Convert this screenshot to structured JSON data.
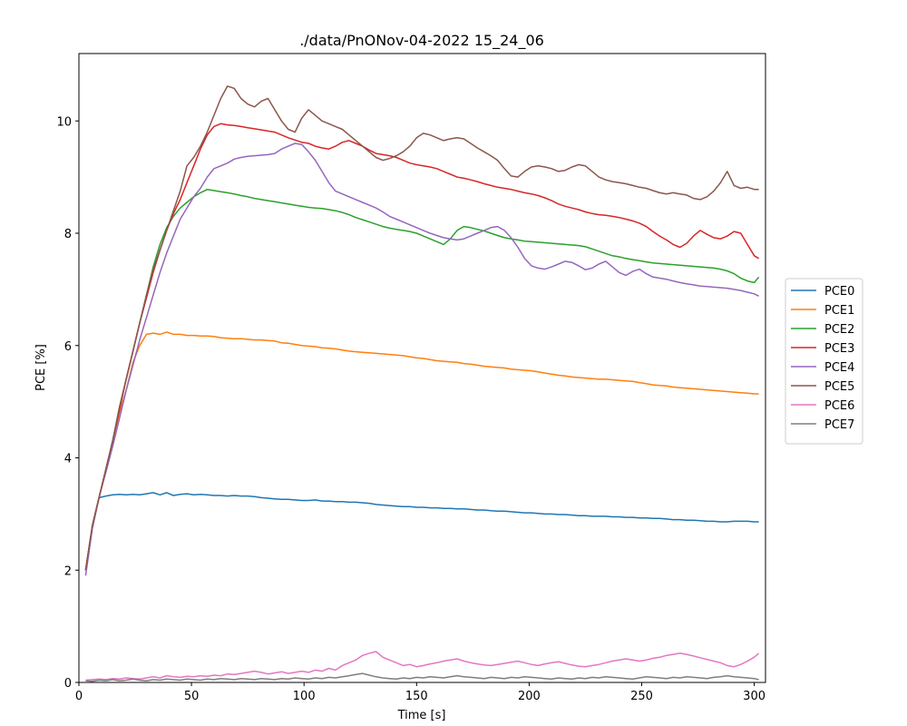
{
  "chart_data": {
    "type": "line",
    "title": "./data/PnONov-04-2022 15_24_06",
    "xlabel": "Time [s]",
    "ylabel": "PCE [%]",
    "xlim": [
      0,
      305
    ],
    "ylim": [
      0,
      11.2
    ],
    "x_ticks": [
      0,
      50,
      100,
      150,
      200,
      250,
      300
    ],
    "y_ticks": [
      0,
      2,
      4,
      6,
      8,
      10
    ],
    "legend_position": "center-right (outside axes)",
    "grid": false,
    "x": [
      3,
      6,
      9,
      12,
      15,
      18,
      21,
      24,
      27,
      30,
      33,
      36,
      39,
      42,
      45,
      48,
      51,
      54,
      57,
      60,
      63,
      66,
      69,
      72,
      75,
      78,
      81,
      84,
      87,
      90,
      93,
      96,
      99,
      102,
      105,
      108,
      111,
      114,
      117,
      120,
      123,
      126,
      129,
      132,
      135,
      138,
      141,
      144,
      147,
      150,
      153,
      156,
      159,
      162,
      165,
      168,
      171,
      174,
      177,
      180,
      183,
      186,
      189,
      192,
      195,
      198,
      201,
      204,
      207,
      210,
      213,
      216,
      219,
      222,
      225,
      228,
      231,
      234,
      237,
      240,
      243,
      246,
      249,
      252,
      255,
      258,
      261,
      264,
      267,
      270,
      273,
      276,
      279,
      282,
      285,
      288,
      291,
      294,
      297,
      300,
      302
    ],
    "series": [
      {
        "name": "PCE0",
        "color": "#1f77b4",
        "values": [
          2.0,
          2.8,
          3.29,
          3.32,
          3.34,
          3.35,
          3.34,
          3.35,
          3.34,
          3.36,
          3.38,
          3.34,
          3.38,
          3.33,
          3.35,
          3.36,
          3.34,
          3.35,
          3.34,
          3.33,
          3.33,
          3.32,
          3.33,
          3.32,
          3.32,
          3.31,
          3.29,
          3.28,
          3.27,
          3.26,
          3.26,
          3.25,
          3.24,
          3.24,
          3.25,
          3.23,
          3.23,
          3.22,
          3.22,
          3.21,
          3.21,
          3.2,
          3.19,
          3.17,
          3.16,
          3.15,
          3.14,
          3.13,
          3.13,
          3.12,
          3.12,
          3.11,
          3.11,
          3.1,
          3.1,
          3.09,
          3.09,
          3.08,
          3.07,
          3.07,
          3.06,
          3.05,
          3.05,
          3.04,
          3.03,
          3.02,
          3.02,
          3.01,
          3.0,
          3.0,
          2.99,
          2.99,
          2.98,
          2.97,
          2.97,
          2.96,
          2.96,
          2.96,
          2.95,
          2.95,
          2.94,
          2.94,
          2.93,
          2.93,
          2.92,
          2.92,
          2.91,
          2.9,
          2.9,
          2.89,
          2.89,
          2.88,
          2.87,
          2.87,
          2.86,
          2.86,
          2.87,
          2.87,
          2.87,
          2.86,
          2.86
        ]
      },
      {
        "name": "PCE1",
        "color": "#ff7f0e",
        "values": [
          2.0,
          2.75,
          3.3,
          3.8,
          4.3,
          4.8,
          5.2,
          5.7,
          6.0,
          6.2,
          6.22,
          6.2,
          6.24,
          6.2,
          6.2,
          6.18,
          6.18,
          6.17,
          6.17,
          6.16,
          6.14,
          6.13,
          6.12,
          6.12,
          6.11,
          6.1,
          6.1,
          6.09,
          6.08,
          6.05,
          6.04,
          6.02,
          6.0,
          5.99,
          5.98,
          5.96,
          5.95,
          5.94,
          5.92,
          5.9,
          5.89,
          5.88,
          5.87,
          5.86,
          5.85,
          5.84,
          5.83,
          5.82,
          5.8,
          5.78,
          5.77,
          5.75,
          5.73,
          5.72,
          5.71,
          5.7,
          5.68,
          5.67,
          5.65,
          5.63,
          5.62,
          5.61,
          5.6,
          5.58,
          5.57,
          5.56,
          5.55,
          5.53,
          5.51,
          5.49,
          5.47,
          5.46,
          5.44,
          5.43,
          5.42,
          5.41,
          5.4,
          5.4,
          5.39,
          5.38,
          5.37,
          5.36,
          5.34,
          5.32,
          5.3,
          5.29,
          5.28,
          5.26,
          5.25,
          5.24,
          5.23,
          5.22,
          5.21,
          5.2,
          5.19,
          5.18,
          5.17,
          5.16,
          5.15,
          5.14,
          5.14
        ]
      },
      {
        "name": "PCE2",
        "color": "#2ca02c",
        "values": [
          2.0,
          2.8,
          3.3,
          3.8,
          4.3,
          4.9,
          5.4,
          5.9,
          6.4,
          6.9,
          7.4,
          7.8,
          8.1,
          8.3,
          8.45,
          8.55,
          8.65,
          8.72,
          8.78,
          8.76,
          8.74,
          8.72,
          8.7,
          8.67,
          8.65,
          8.62,
          8.6,
          8.58,
          8.56,
          8.54,
          8.52,
          8.5,
          8.48,
          8.46,
          8.45,
          8.44,
          8.42,
          8.4,
          8.37,
          8.33,
          8.28,
          8.24,
          8.2,
          8.16,
          8.12,
          8.09,
          8.07,
          8.05,
          8.03,
          8.0,
          7.95,
          7.9,
          7.85,
          7.8,
          7.9,
          8.05,
          8.12,
          8.1,
          8.07,
          8.04,
          8.0,
          7.96,
          7.92,
          7.9,
          7.88,
          7.86,
          7.85,
          7.84,
          7.83,
          7.82,
          7.81,
          7.8,
          7.79,
          7.78,
          7.76,
          7.72,
          7.68,
          7.64,
          7.6,
          7.58,
          7.55,
          7.53,
          7.51,
          7.49,
          7.47,
          7.46,
          7.45,
          7.44,
          7.43,
          7.42,
          7.41,
          7.4,
          7.39,
          7.38,
          7.36,
          7.33,
          7.28,
          7.2,
          7.15,
          7.12,
          7.22
        ]
      },
      {
        "name": "PCE3",
        "color": "#d62728",
        "values": [
          2.0,
          2.8,
          3.3,
          3.8,
          4.3,
          4.85,
          5.4,
          5.9,
          6.4,
          6.85,
          7.3,
          7.7,
          8.05,
          8.35,
          8.6,
          8.9,
          9.2,
          9.5,
          9.75,
          9.9,
          9.95,
          9.93,
          9.92,
          9.9,
          9.88,
          9.86,
          9.84,
          9.82,
          9.8,
          9.75,
          9.7,
          9.66,
          9.62,
          9.6,
          9.55,
          9.52,
          9.5,
          9.55,
          9.62,
          9.65,
          9.6,
          9.55,
          9.48,
          9.42,
          9.4,
          9.38,
          9.35,
          9.3,
          9.25,
          9.22,
          9.2,
          9.18,
          9.15,
          9.1,
          9.05,
          9.0,
          8.98,
          8.95,
          8.92,
          8.88,
          8.85,
          8.82,
          8.8,
          8.78,
          8.75,
          8.72,
          8.7,
          8.67,
          8.63,
          8.58,
          8.52,
          8.48,
          8.45,
          8.42,
          8.38,
          8.35,
          8.33,
          8.32,
          8.3,
          8.28,
          8.25,
          8.22,
          8.18,
          8.12,
          8.03,
          7.95,
          7.88,
          7.8,
          7.75,
          7.82,
          7.95,
          8.05,
          7.98,
          7.92,
          7.9,
          7.95,
          8.03,
          8.0,
          7.8,
          7.6,
          7.55
        ]
      },
      {
        "name": "PCE4",
        "color": "#9467bd",
        "values": [
          1.9,
          2.75,
          3.3,
          3.75,
          4.2,
          4.7,
          5.2,
          5.65,
          6.1,
          6.5,
          6.9,
          7.3,
          7.65,
          7.95,
          8.25,
          8.45,
          8.65,
          8.8,
          9.0,
          9.15,
          9.2,
          9.25,
          9.32,
          9.35,
          9.37,
          9.38,
          9.39,
          9.4,
          9.42,
          9.5,
          9.55,
          9.6,
          9.58,
          9.45,
          9.3,
          9.1,
          8.9,
          8.75,
          8.7,
          8.65,
          8.6,
          8.55,
          8.5,
          8.45,
          8.38,
          8.3,
          8.25,
          8.2,
          8.15,
          8.1,
          8.05,
          8.0,
          7.96,
          7.92,
          7.9,
          7.88,
          7.9,
          7.95,
          8.0,
          8.05,
          8.1,
          8.12,
          8.05,
          7.92,
          7.75,
          7.55,
          7.42,
          7.38,
          7.36,
          7.4,
          7.45,
          7.5,
          7.48,
          7.42,
          7.35,
          7.38,
          7.45,
          7.5,
          7.4,
          7.3,
          7.25,
          7.32,
          7.36,
          7.28,
          7.22,
          7.2,
          7.18,
          7.15,
          7.12,
          7.1,
          7.08,
          7.06,
          7.05,
          7.04,
          7.03,
          7.02,
          7.0,
          6.98,
          6.95,
          6.92,
          6.88
        ]
      },
      {
        "name": "PCE5",
        "color": "#8c564b",
        "values": [
          2.0,
          2.8,
          3.3,
          3.8,
          4.3,
          4.9,
          5.4,
          5.9,
          6.4,
          6.9,
          7.35,
          7.7,
          8.05,
          8.4,
          8.75,
          9.2,
          9.35,
          9.55,
          9.8,
          10.1,
          10.4,
          10.62,
          10.58,
          10.4,
          10.3,
          10.25,
          10.35,
          10.4,
          10.2,
          10.0,
          9.85,
          9.8,
          10.05,
          10.2,
          10.1,
          10.0,
          9.95,
          9.9,
          9.85,
          9.75,
          9.65,
          9.55,
          9.45,
          9.35,
          9.3,
          9.33,
          9.38,
          9.45,
          9.55,
          9.7,
          9.78,
          9.75,
          9.7,
          9.65,
          9.68,
          9.7,
          9.68,
          9.6,
          9.52,
          9.45,
          9.38,
          9.3,
          9.15,
          9.02,
          9.0,
          9.1,
          9.18,
          9.2,
          9.18,
          9.15,
          9.1,
          9.12,
          9.18,
          9.22,
          9.2,
          9.1,
          9.0,
          8.95,
          8.92,
          8.9,
          8.88,
          8.85,
          8.82,
          8.8,
          8.76,
          8.72,
          8.7,
          8.72,
          8.7,
          8.68,
          8.62,
          8.6,
          8.65,
          8.75,
          8.9,
          9.1,
          8.85,
          8.8,
          8.82,
          8.78,
          8.78
        ]
      },
      {
        "name": "PCE6",
        "color": "#e377c2",
        "values": [
          0.04,
          0.05,
          0.06,
          0.05,
          0.07,
          0.06,
          0.08,
          0.07,
          0.06,
          0.08,
          0.1,
          0.08,
          0.12,
          0.1,
          0.09,
          0.11,
          0.1,
          0.12,
          0.11,
          0.13,
          0.12,
          0.15,
          0.14,
          0.16,
          0.18,
          0.2,
          0.18,
          0.15,
          0.17,
          0.19,
          0.16,
          0.18,
          0.2,
          0.18,
          0.22,
          0.2,
          0.25,
          0.22,
          0.3,
          0.35,
          0.4,
          0.48,
          0.52,
          0.55,
          0.45,
          0.4,
          0.35,
          0.3,
          0.32,
          0.28,
          0.3,
          0.33,
          0.35,
          0.38,
          0.4,
          0.42,
          0.38,
          0.35,
          0.33,
          0.31,
          0.3,
          0.32,
          0.34,
          0.36,
          0.38,
          0.35,
          0.32,
          0.3,
          0.33,
          0.35,
          0.37,
          0.34,
          0.31,
          0.29,
          0.28,
          0.3,
          0.32,
          0.35,
          0.38,
          0.4,
          0.42,
          0.4,
          0.38,
          0.4,
          0.43,
          0.45,
          0.48,
          0.5,
          0.52,
          0.5,
          0.47,
          0.44,
          0.41,
          0.38,
          0.35,
          0.3,
          0.28,
          0.32,
          0.38,
          0.45,
          0.52
        ]
      },
      {
        "name": "PCE7",
        "color": "#7f7f7f",
        "values": [
          0.03,
          0.02,
          0.04,
          0.03,
          0.05,
          0.03,
          0.04,
          0.06,
          0.04,
          0.03,
          0.05,
          0.04,
          0.06,
          0.05,
          0.04,
          0.06,
          0.05,
          0.04,
          0.06,
          0.05,
          0.07,
          0.06,
          0.05,
          0.07,
          0.06,
          0.05,
          0.07,
          0.06,
          0.05,
          0.07,
          0.06,
          0.08,
          0.07,
          0.06,
          0.08,
          0.07,
          0.09,
          0.08,
          0.1,
          0.12,
          0.14,
          0.16,
          0.13,
          0.1,
          0.08,
          0.07,
          0.06,
          0.08,
          0.07,
          0.09,
          0.08,
          0.1,
          0.09,
          0.08,
          0.1,
          0.12,
          0.1,
          0.09,
          0.08,
          0.07,
          0.09,
          0.08,
          0.07,
          0.09,
          0.08,
          0.1,
          0.09,
          0.08,
          0.07,
          0.06,
          0.08,
          0.07,
          0.06,
          0.08,
          0.07,
          0.09,
          0.08,
          0.1,
          0.09,
          0.08,
          0.07,
          0.06,
          0.08,
          0.1,
          0.09,
          0.08,
          0.07,
          0.09,
          0.08,
          0.1,
          0.09,
          0.08,
          0.07,
          0.09,
          0.1,
          0.12,
          0.1,
          0.09,
          0.08,
          0.07,
          0.05
        ]
      }
    ]
  }
}
